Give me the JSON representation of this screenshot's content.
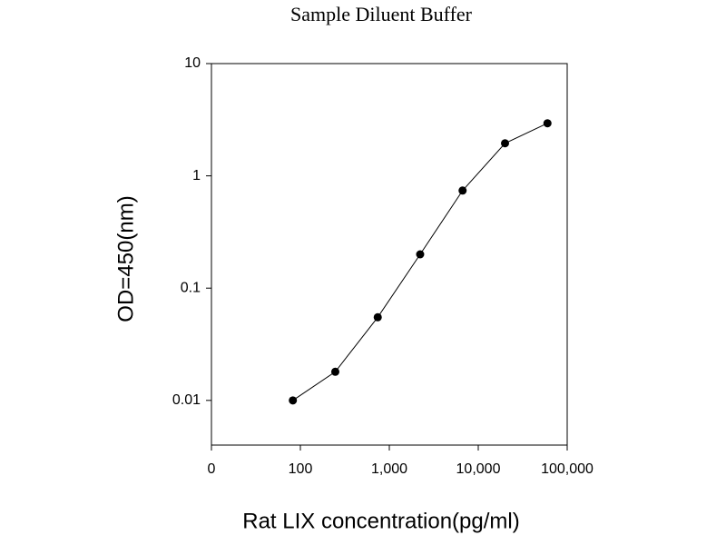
{
  "chart_data": {
    "type": "line",
    "title": "Sample Diluent Buffer",
    "x_label": "Rat LIX concentration(pg/ml)",
    "y_label": "OD=450(nm)",
    "x": [
      82.3,
      247,
      741,
      2222,
      6667,
      20000,
      60000
    ],
    "series": [
      {
        "color": "#000000",
        "values": [
          0.01,
          0.018,
          0.055,
          0.2,
          0.74,
          1.95,
          2.94
        ]
      }
    ],
    "x_log": true,
    "y_log": true,
    "xlim": [
      10,
      100000
    ],
    "xticks": [
      {
        "value": 10,
        "label": "0"
      },
      100,
      {
        "value": 1000,
        "label": "1,000"
      },
      {
        "value": 10000,
        "label": "10,000"
      },
      {
        "value": 100000,
        "label": "100,000"
      }
    ],
    "ylim": [
      0.004,
      10
    ],
    "yticks": [
      0.01,
      0.1,
      1,
      10
    ],
    "grid": false
  }
}
